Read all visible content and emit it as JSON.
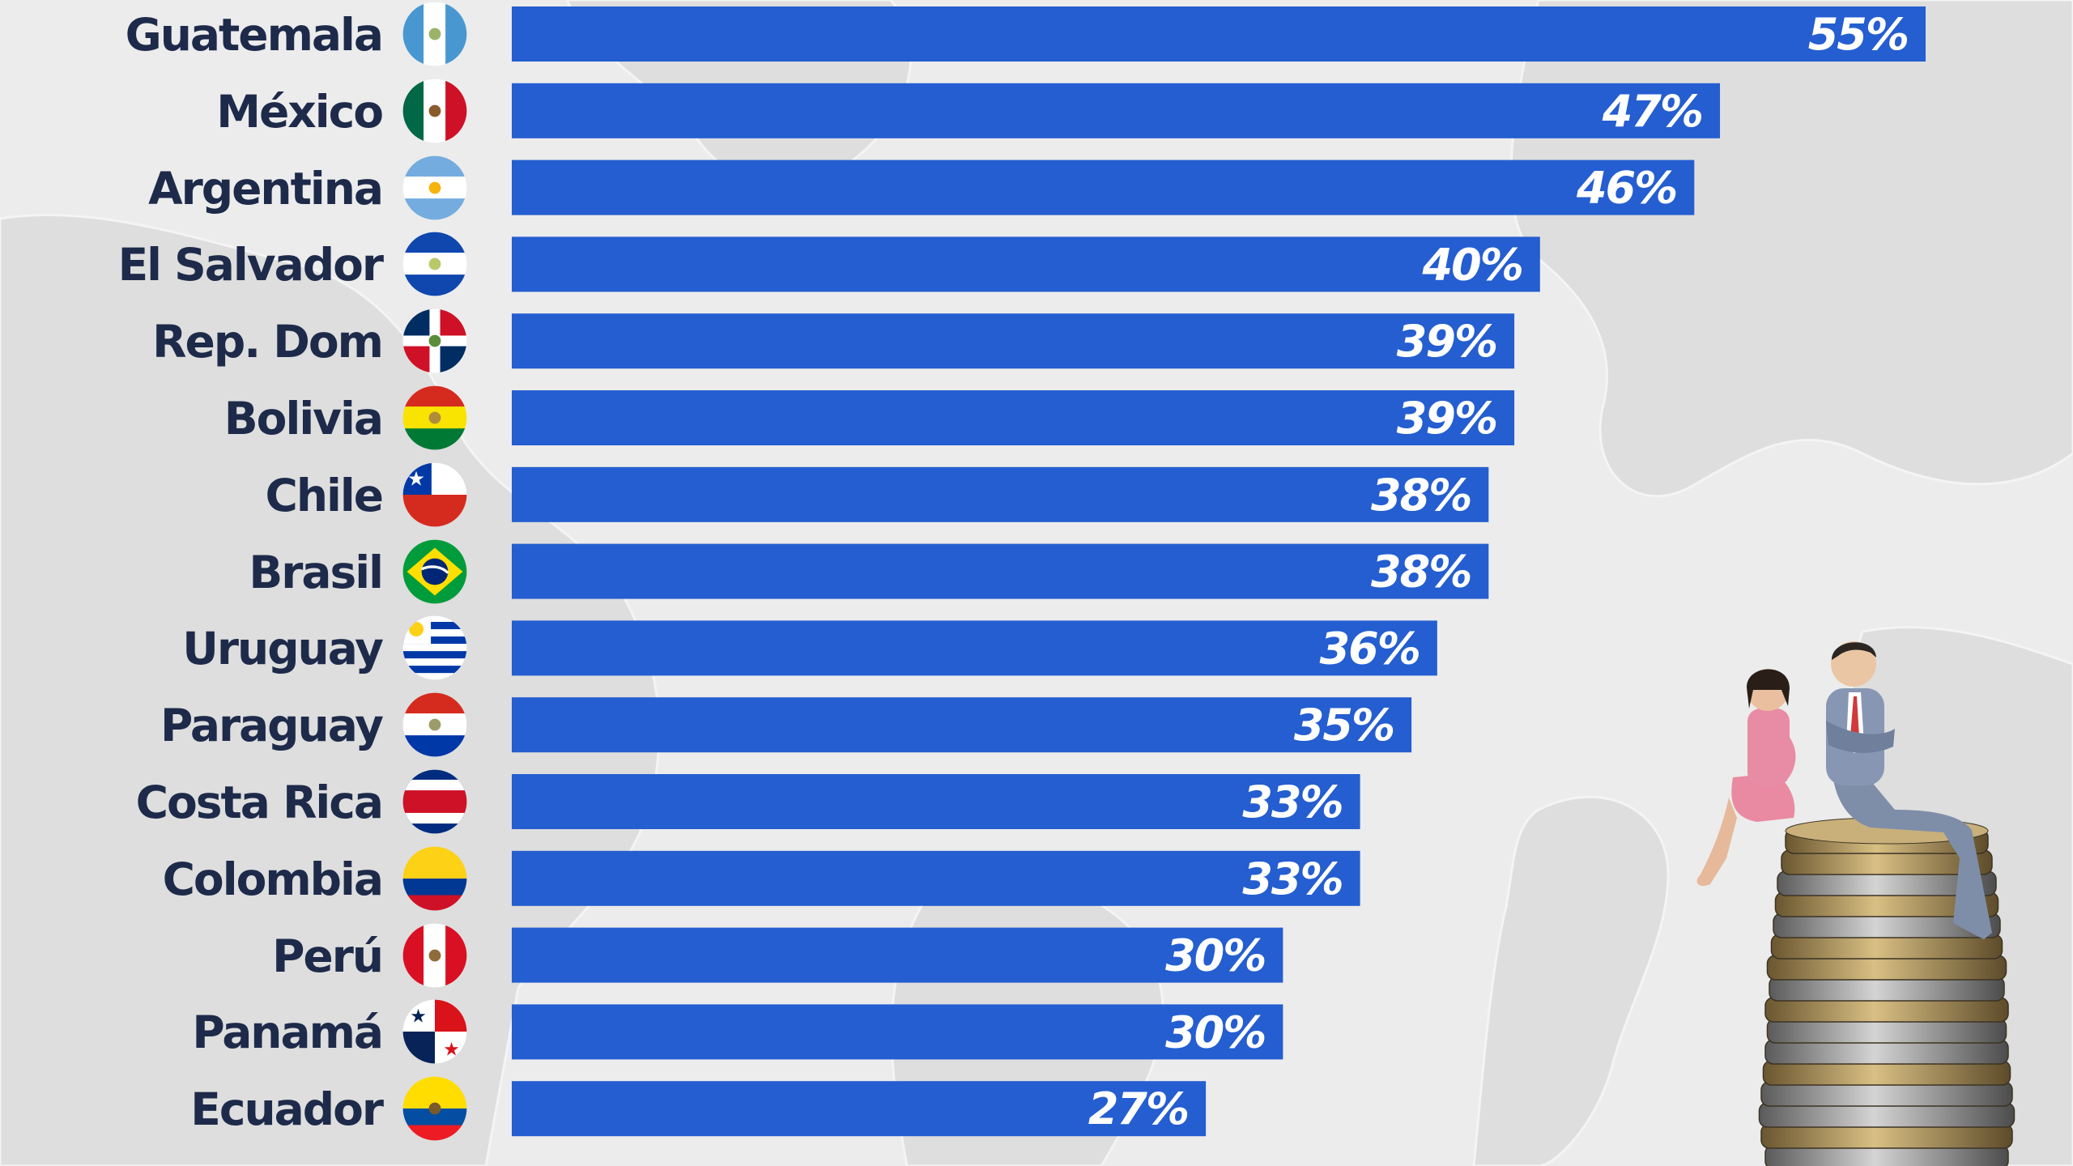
{
  "chart_data": {
    "type": "bar",
    "orientation": "horizontal",
    "title": "",
    "xlabel": "",
    "ylabel": "",
    "xlim": [
      0,
      55
    ],
    "grid": false,
    "legend": "none",
    "bar_color": "#245ed0",
    "categories": [
      "Guatemala",
      "México",
      "Argentina",
      "El Salvador",
      "Rep. Dom",
      "Bolivia",
      "Chile",
      "Brasil",
      "Uruguay",
      "Paraguay",
      "Costa Rica",
      "Colombia",
      "Perú",
      "Panamá",
      "Ecuador"
    ],
    "values": [
      55,
      47,
      46,
      40,
      39,
      39,
      38,
      38,
      36,
      35,
      33,
      33,
      30,
      30,
      27
    ],
    "data_labels": [
      "55%",
      "47%",
      "46%",
      "40%",
      "39%",
      "39%",
      "38%",
      "38%",
      "36%",
      "35%",
      "33%",
      "33%",
      "30%",
      "30%",
      "27%"
    ],
    "flag_icons": [
      "guatemala-flag-icon",
      "mexico-flag-icon",
      "argentina-flag-icon",
      "el-salvador-flag-icon",
      "dominican-republic-flag-icon",
      "bolivia-flag-icon",
      "chile-flag-icon",
      "brazil-flag-icon",
      "uruguay-flag-icon",
      "paraguay-flag-icon",
      "costa-rica-flag-icon",
      "colombia-flag-icon",
      "peru-flag-icon",
      "panama-flag-icon",
      "ecuador-flag-icon"
    ]
  },
  "decor": {
    "background_image": "world-map-illustration",
    "photo": "figurines-on-coin-stack-illustration"
  }
}
